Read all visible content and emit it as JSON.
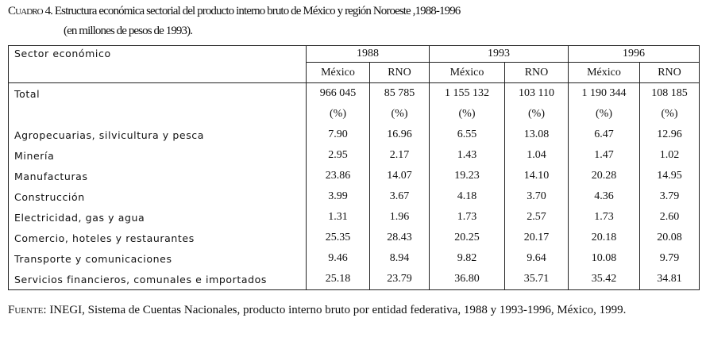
{
  "title": {
    "label": "Cuadro 4.",
    "text": "Estructura económica sectorial del producto interno bruto de México y región Noroeste ,1988-1996"
  },
  "subtitle": "(en millones de pesos de 1993).",
  "table": {
    "sector_header": "Sector económico",
    "years": [
      "1988",
      "1993",
      "1996"
    ],
    "subheaders": [
      "México",
      "RNO",
      "México",
      "RNO",
      "México",
      "RNO"
    ],
    "total": {
      "label": "Total",
      "cells": [
        "966 045",
        "85 785",
        "1 155 132",
        "103 110",
        "1 190 344",
        "108 185"
      ]
    },
    "percent_row": [
      "(%)",
      "(%)",
      "(%)",
      "(%)",
      "(%)",
      "(%)"
    ],
    "rows": [
      {
        "label": "Agropecuarias, silvicultura y pesca",
        "cells": [
          "7.90",
          "16.96",
          "6.55",
          "13.08",
          "6.47",
          "12.96"
        ]
      },
      {
        "label": "Minería",
        "cells": [
          "2.95",
          "2.17",
          "1.43",
          "1.04",
          "1.47",
          "1.02"
        ]
      },
      {
        "label": "Manufacturas",
        "cells": [
          "23.86",
          "14.07",
          "19.23",
          "14.10",
          "20.28",
          "14.95"
        ]
      },
      {
        "label": "Construcción",
        "cells": [
          "3.99",
          "3.67",
          "4.18",
          "3.70",
          "4.36",
          "3.79"
        ]
      },
      {
        "label": "Electricidad, gas y agua",
        "cells": [
          "1.31",
          "1.96",
          "1.73",
          "2.57",
          "1.73",
          "2.60"
        ]
      },
      {
        "label": "Comercio, hoteles y restaurantes",
        "cells": [
          "25.35",
          "28.43",
          "20.25",
          "20.17",
          "20.18",
          "20.08"
        ]
      },
      {
        "label": "Transporte y comunicaciones",
        "cells": [
          "9.46",
          "8.94",
          "9.82",
          "9.64",
          "10.08",
          "9.79"
        ]
      },
      {
        "label": "Servicios financieros, comunales e importados",
        "cells": [
          "25.18",
          "23.79",
          "36.80",
          "35.71",
          "35.42",
          "34.81"
        ]
      }
    ]
  },
  "footnote": {
    "label": "Fuente:",
    "text": "INEGI, Sistema de Cuentas Nacionales, producto interno bruto por entidad federativa, 1988 y 1993-1996, México, 1999."
  }
}
